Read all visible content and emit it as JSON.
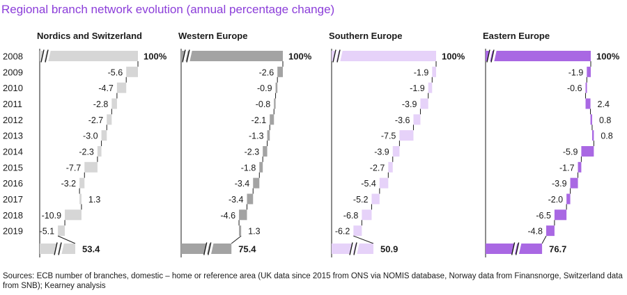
{
  "title": "Regional branch network evolution  (annual percentage change)",
  "footnote": "Sources: ECB number of branches, domestic – home or reference area (UK data since 2015 from ONS via NOMIS database, Norway data from Finansnorge, Switzerland data from SNB); Kearney analysis",
  "chart_data": {
    "type": "waterfall",
    "categories": [
      "2008",
      "2009",
      "2010",
      "2011",
      "2012",
      "2013",
      "2014",
      "2015",
      "2016",
      "2017",
      "2018",
      "2019"
    ],
    "start_label": "100%",
    "start_value": 100,
    "panels": [
      {
        "name": "Nordics and Switzerland",
        "color": "#d6d6d6",
        "changes": [
          -5.6,
          -4.7,
          -2.8,
          -2.7,
          -3.0,
          -2.3,
          -7.7,
          -3.2,
          1.3,
          -10.9,
          -5.1
        ],
        "labels": [
          "-5.6",
          "-4.7",
          "-2.8",
          "-2.7",
          "-3.0",
          "-2.3",
          "-7.7",
          "-3.2",
          "1.3",
          "-10.9",
          "-5.1"
        ],
        "end_value": 53.4,
        "end_label": "53.4"
      },
      {
        "name": "Western Europe",
        "color": "#a3a3a3",
        "changes": [
          -2.6,
          -0.9,
          -0.8,
          -2.1,
          -1.3,
          -2.3,
          -1.8,
          -3.4,
          -3.4,
          -4.6,
          1.3
        ],
        "labels": [
          "-2.6",
          "-0.9",
          "-0.8",
          "-2.1",
          "-1.3",
          "-2.3",
          "-1.8",
          "-3.4",
          "-3.4",
          "-4.6",
          "1.3"
        ],
        "end_value": 75.4,
        "end_label": "75.4"
      },
      {
        "name": "Southern Europe",
        "color": "#e6d2f9",
        "changes": [
          -1.9,
          -1.9,
          -3.9,
          -3.6,
          -7.5,
          -3.9,
          -2.7,
          -5.4,
          -5.2,
          -6.8,
          -6.2
        ],
        "labels": [
          "-1.9",
          "-1.9",
          "-3.9",
          "-3.6",
          "-7.5",
          "-3.9",
          "-2.7",
          "-5.4",
          "-5.2",
          "-6.8",
          "-6.2"
        ],
        "end_value": 50.9,
        "end_label": "50.9"
      },
      {
        "name": "Eastern Europe",
        "color": "#a968e3",
        "changes": [
          -1.9,
          -0.6,
          2.4,
          0.8,
          0.8,
          -5.9,
          -1.7,
          -3.9,
          -2.0,
          -6.5,
          -4.8
        ],
        "labels": [
          "-1.9",
          "-0.6",
          "2.4",
          "0.8",
          "0.8",
          "-5.9",
          "-1.7",
          "-3.9",
          "-2.0",
          "-6.5",
          "-4.8"
        ],
        "end_value": 76.7,
        "end_label": "76.7"
      }
    ]
  }
}
